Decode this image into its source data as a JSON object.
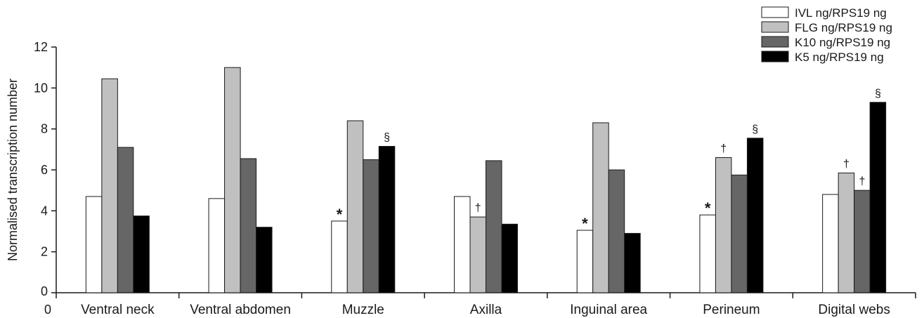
{
  "chart_data": {
    "type": "bar",
    "title": "",
    "xlabel": "",
    "ylabel": "Normalised transcription number",
    "ylim": [
      0,
      12
    ],
    "yticks": [
      0,
      2,
      4,
      6,
      8,
      10,
      12
    ],
    "x_origin_label": "0",
    "grid": false,
    "legend_position": "top-right",
    "categories": [
      "Ventral neck",
      "Ventral abdomen",
      "Muzzle",
      "Axilla",
      "Inguinal area",
      "Perineum",
      "Digital webs"
    ],
    "series": [
      {
        "name": "IVL ng/RPS19 ng",
        "color": "#ffffff",
        "values": [
          4.7,
          4.6,
          3.5,
          4.7,
          3.05,
          3.8,
          4.8
        ],
        "annotations": [
          "",
          "",
          "*",
          "",
          "*",
          "*",
          ""
        ]
      },
      {
        "name": "FLG ng/RPS19 ng",
        "color": "#c0c0c0",
        "values": [
          10.45,
          11.0,
          8.4,
          3.7,
          8.3,
          6.6,
          5.85
        ],
        "annotations": [
          "",
          "",
          "",
          "†",
          "",
          "†",
          "†"
        ]
      },
      {
        "name": "K10 ng/RPS19 ng",
        "color": "#666666",
        "values": [
          7.1,
          6.55,
          6.5,
          6.45,
          6.0,
          5.75,
          5.0
        ],
        "annotations": [
          "",
          "",
          "",
          "",
          "",
          "",
          "†"
        ]
      },
      {
        "name": "K5 ng/RPS19 ng",
        "color": "#000000",
        "values": [
          3.75,
          3.2,
          7.15,
          3.35,
          2.9,
          7.55,
          9.3
        ],
        "annotations": [
          "",
          "",
          "§",
          "",
          "",
          "§",
          "§"
        ]
      }
    ]
  }
}
